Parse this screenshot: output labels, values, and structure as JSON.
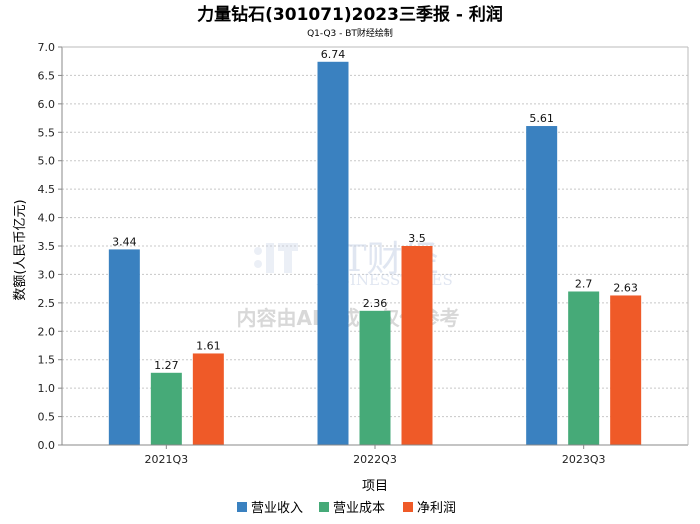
{
  "chart_data": {
    "type": "bar",
    "title": "力量钻石(301071)2023三季报 - 利润",
    "subtitle": "Q1-Q3 - BT财经绘制",
    "xlabel": "项目",
    "ylabel": "数额(人民币亿元)",
    "categories": [
      "2021Q3",
      "2022Q3",
      "2023Q3"
    ],
    "ylim": [
      0,
      7.0
    ],
    "yticks": [
      "0.0",
      "0.5",
      "1.0",
      "1.5",
      "2.0",
      "2.5",
      "3.0",
      "3.5",
      "4.0",
      "4.5",
      "5.0",
      "5.5",
      "6.0",
      "6.5",
      "7.0"
    ],
    "grid": true,
    "legend_position": "bottom-center",
    "series": [
      {
        "name": "营业收入",
        "color": "#3a81c0",
        "values": [
          3.44,
          6.74,
          5.61
        ],
        "labels": [
          "3.44",
          "6.74",
          "5.61"
        ]
      },
      {
        "name": "营业成本",
        "color": "#46aa78",
        "values": [
          1.27,
          2.36,
          2.7
        ],
        "labels": [
          "1.27",
          "2.36",
          "2.7"
        ]
      },
      {
        "name": "净利润",
        "color": "#ef5a28",
        "values": [
          1.61,
          3.5,
          2.63
        ],
        "labels": [
          "1.61",
          "3.5",
          "2.63"
        ]
      }
    ]
  },
  "watermark": {
    "logo_main": "BT财经",
    "logo_sub": "BUSINESSTIMES",
    "note": "内容由AI生成，仅供参考"
  }
}
